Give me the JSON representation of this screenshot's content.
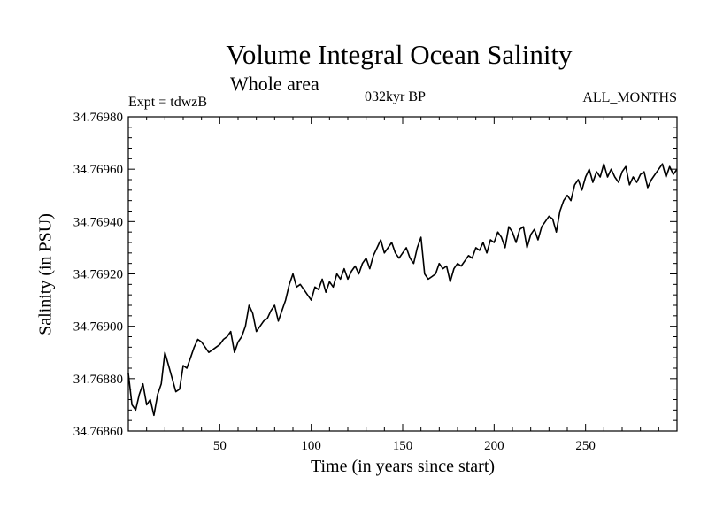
{
  "chart_data": {
    "type": "line",
    "title": "Volume Integral Ocean Salinity",
    "subtitle": "Whole area",
    "annotations": {
      "experiment": "Expt = tdwzB",
      "period": "032kyr BP",
      "months": "ALL_MONTHS"
    },
    "xlabel": "Time (in years since start)",
    "ylabel": "Salinity (in PSU)",
    "xlim": [
      0,
      300
    ],
    "ylim": [
      34.7686,
      34.7698
    ],
    "xticks": [
      50,
      100,
      150,
      200,
      250
    ],
    "yticks": [
      "34.76860",
      "34.76880",
      "34.76900",
      "34.76920",
      "34.76940",
      "34.76960",
      "34.76980"
    ],
    "grid": false,
    "series": [
      {
        "color": "#000000",
        "x": [
          0,
          2,
          4,
          6,
          8,
          10,
          12,
          14,
          16,
          18,
          20,
          22,
          24,
          26,
          28,
          30,
          32,
          34,
          36,
          38,
          40,
          42,
          44,
          46,
          48,
          50,
          52,
          54,
          56,
          58,
          60,
          62,
          64,
          66,
          68,
          70,
          72,
          74,
          76,
          78,
          80,
          82,
          84,
          86,
          88,
          90,
          92,
          94,
          96,
          98,
          100,
          102,
          104,
          106,
          108,
          110,
          112,
          114,
          116,
          118,
          120,
          122,
          124,
          126,
          128,
          130,
          132,
          134,
          136,
          138,
          140,
          142,
          144,
          146,
          148,
          150,
          152,
          154,
          156,
          158,
          160,
          162,
          164,
          166,
          168,
          170,
          172,
          174,
          176,
          178,
          180,
          182,
          184,
          186,
          188,
          190,
          192,
          194,
          196,
          198,
          200,
          202,
          204,
          206,
          208,
          210,
          212,
          214,
          216,
          218,
          220,
          222,
          224,
          226,
          228,
          230,
          232,
          234,
          236,
          238,
          240,
          242,
          244,
          246,
          248,
          250,
          252,
          254,
          256,
          258,
          260,
          262,
          264,
          266,
          268,
          270,
          272,
          274,
          276,
          278,
          280,
          282,
          284,
          286,
          288,
          290,
          292,
          294,
          296,
          298,
          300
        ],
        "values": [
          34.76882,
          34.7687,
          34.76868,
          34.76874,
          34.76878,
          34.7687,
          34.76872,
          34.76866,
          34.76874,
          34.76878,
          34.7689,
          34.76885,
          34.7688,
          34.76875,
          34.76876,
          34.76885,
          34.76884,
          34.76888,
          34.76892,
          34.76895,
          34.76894,
          34.76892,
          34.7689,
          34.76891,
          34.76892,
          34.76893,
          34.76895,
          34.76896,
          34.76898,
          34.7689,
          34.76894,
          34.76896,
          34.769,
          34.76908,
          34.76905,
          34.76898,
          34.769,
          34.76902,
          34.76903,
          34.76906,
          34.76908,
          34.76902,
          34.76906,
          34.7691,
          34.76916,
          34.7692,
          34.76915,
          34.76916,
          34.76914,
          34.76912,
          34.7691,
          34.76915,
          34.76914,
          34.76918,
          34.76913,
          34.76917,
          34.76915,
          34.7692,
          34.76918,
          34.76922,
          34.76918,
          34.76921,
          34.76923,
          34.7692,
          34.76924,
          34.76926,
          34.76922,
          34.76927,
          34.7693,
          34.76933,
          34.76928,
          34.7693,
          34.76932,
          34.76928,
          34.76926,
          34.76928,
          34.7693,
          34.76926,
          34.76924,
          34.7693,
          34.76934,
          34.7692,
          34.76918,
          34.76919,
          34.7692,
          34.76924,
          34.76922,
          34.76923,
          34.76917,
          34.76922,
          34.76924,
          34.76923,
          34.76925,
          34.76927,
          34.76926,
          34.7693,
          34.76929,
          34.76932,
          34.76928,
          34.76933,
          34.76932,
          34.76936,
          34.76934,
          34.7693,
          34.76938,
          34.76936,
          34.76932,
          34.76937,
          34.76938,
          34.7693,
          34.76935,
          34.76937,
          34.76933,
          34.76938,
          34.7694,
          34.76942,
          34.76941,
          34.76936,
          34.76944,
          34.76948,
          34.7695,
          34.76948,
          34.76954,
          34.76956,
          34.76952,
          34.76957,
          34.7696,
          34.76955,
          34.76959,
          34.76957,
          34.76962,
          34.76957,
          34.7696,
          34.76957,
          34.76955,
          34.76959,
          34.76961,
          34.76954,
          34.76957,
          34.76955,
          34.76958,
          34.76959,
          34.76953,
          34.76956,
          34.76958,
          34.7696,
          34.76962,
          34.76957,
          34.76961,
          34.76958,
          34.7696
        ]
      }
    ]
  }
}
